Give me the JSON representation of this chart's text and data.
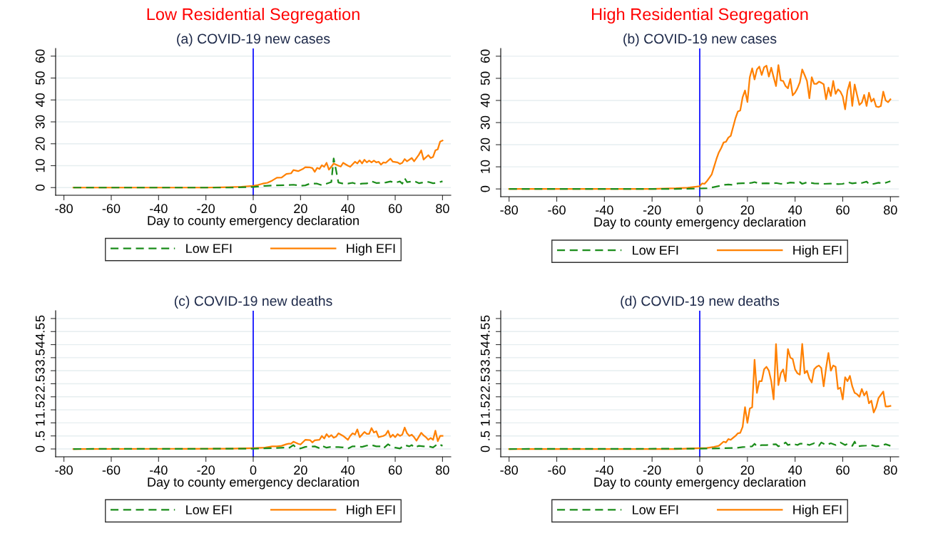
{
  "chart_data": [
    {
      "type": "line",
      "title": "Low Residential Segregation",
      "subtitle": "(a) COVID-19 new cases",
      "xlabel": "Day to county emergency declaration",
      "xlim": [
        -83.5,
        83.5
      ],
      "xticks": [
        -80,
        -60,
        -40,
        -20,
        0,
        20,
        40,
        60,
        80
      ],
      "ylim": [
        -3.5,
        63.5
      ],
      "yticks": [
        0,
        10,
        20,
        30,
        40,
        50,
        60
      ],
      "grid": "y",
      "legend": "bottom",
      "ref_lines": [
        {
          "axis": "x",
          "value": 0,
          "color": "#0000ff"
        }
      ],
      "series": [
        {
          "name": "Low EFI",
          "color": "#1a8c1a",
          "line_style": "dashed",
          "x": [
            -76,
            -10,
            0,
            5,
            10,
            15,
            17,
            20,
            22,
            24,
            27,
            29,
            31,
            33,
            34,
            35,
            36,
            38,
            40,
            42,
            44,
            46,
            48,
            50,
            52,
            54,
            56,
            58,
            60,
            62,
            63,
            64,
            65,
            67,
            68,
            70,
            72,
            74,
            76,
            78,
            80
          ],
          "values": [
            0,
            0,
            0.3,
            0.8,
            1.0,
            1.2,
            1.3,
            0.8,
            1.0,
            1.8,
            1.8,
            1.1,
            1.8,
            2.5,
            13.3,
            8,
            2.3,
            1.8,
            1.8,
            2.2,
            1.5,
            1.8,
            1.9,
            2.9,
            2.1,
            2.2,
            2.3,
            2.8,
            2.2,
            2.8,
            1.8,
            4.3,
            2.5,
            2.8,
            3,
            2,
            2.4,
            2.6,
            2,
            2.2,
            2.9
          ]
        },
        {
          "name": "High EFI",
          "color": "#ff8000",
          "line_style": "solid",
          "x": [
            -76,
            -20,
            -10,
            -5,
            0,
            2,
            4,
            6,
            8,
            10,
            12,
            14,
            16,
            17,
            19,
            21,
            22,
            24,
            25,
            26,
            27,
            28,
            29,
            30,
            31,
            32,
            33,
            34,
            36,
            37,
            38,
            40,
            41,
            43,
            44,
            45,
            46,
            47,
            48,
            49,
            50,
            51,
            52,
            53,
            54,
            55,
            56,
            58,
            59,
            61,
            62,
            63,
            64,
            65,
            67,
            68,
            70,
            71,
            72,
            74,
            75,
            76,
            77,
            78,
            79,
            80
          ],
          "values": [
            0,
            0,
            0.2,
            0.4,
            0.8,
            1.2,
            1.8,
            2.2,
            3.2,
            4.5,
            4.6,
            6.2,
            6.5,
            8,
            7.5,
            8.5,
            9.3,
            9.2,
            8.9,
            7.2,
            9,
            8.5,
            10.2,
            9.5,
            11.3,
            8.2,
            9.5,
            11,
            10,
            9.6,
            11.3,
            10,
            9.5,
            11.8,
            11,
            12.5,
            11,
            12.7,
            11.5,
            12.3,
            11.5,
            12.3,
            11.5,
            11.8,
            10.5,
            11.5,
            11.3,
            13.2,
            11.8,
            11.5,
            10.8,
            11.3,
            13,
            12,
            13.5,
            12,
            15,
            17,
            12.8,
            14.8,
            13.5,
            14,
            17,
            17.5,
            21,
            21.5
          ]
        }
      ]
    },
    {
      "type": "line",
      "title": "High Residential Segregation",
      "subtitle": "(b) COVID-19 new cases",
      "xlabel": "Day to county emergency declaration",
      "xlim": [
        -83.5,
        83.5
      ],
      "xticks": [
        -80,
        -60,
        -40,
        -20,
        0,
        20,
        40,
        60,
        80
      ],
      "ylim": [
        -3.5,
        63.5
      ],
      "yticks": [
        0,
        10,
        20,
        30,
        40,
        50,
        60
      ],
      "grid": "y",
      "legend": "bottom",
      "ref_lines": [
        {
          "axis": "x",
          "value": 0,
          "color": "#0000ff"
        }
      ],
      "series": [
        {
          "name": "Low EFI",
          "color": "#1a8c1a",
          "line_style": "dashed",
          "x": [
            -80,
            -10,
            0,
            3,
            5,
            8,
            10,
            12,
            14,
            16,
            18,
            20,
            22,
            23,
            25,
            28,
            30,
            32,
            34,
            36,
            38,
            40,
            42,
            43,
            45,
            48,
            52,
            55,
            58,
            60,
            62,
            64,
            66,
            68,
            70,
            71,
            73,
            75,
            77,
            78,
            80
          ],
          "values": [
            0,
            0,
            0.2,
            0.3,
            0.6,
            1.3,
            1.8,
            2,
            1.8,
            2.5,
            2.6,
            2.5,
            2.8,
            3.1,
            2.4,
            2.6,
            2.4,
            2.7,
            2.3,
            2.4,
            2.9,
            2.7,
            3.1,
            2.3,
            3,
            2.5,
            2.3,
            2.4,
            2.2,
            2.3,
            3.1,
            2.5,
            2.8,
            2.7,
            3.3,
            2.2,
            2.3,
            2.8,
            2.5,
            2.8,
            3.5
          ]
        },
        {
          "name": "High EFI",
          "color": "#ff8000",
          "line_style": "solid",
          "x": [
            -80,
            -20,
            -10,
            -5,
            0,
            1,
            2,
            3,
            4,
            5,
            6,
            7,
            8,
            9,
            10,
            11,
            12,
            13,
            14,
            15,
            16,
            17,
            18,
            19,
            20,
            21,
            22,
            23,
            24,
            25,
            26,
            27,
            28,
            29,
            30,
            31,
            32,
            33,
            34,
            35,
            36,
            37,
            38,
            39,
            40,
            41,
            42,
            43,
            44,
            45,
            46,
            47,
            48,
            49,
            50,
            51,
            52,
            53,
            54,
            55,
            56,
            57,
            58,
            59,
            60,
            61,
            62,
            63,
            64,
            65,
            66,
            67,
            68,
            69,
            70,
            71,
            72,
            73,
            74,
            75,
            76,
            77,
            78,
            79,
            80
          ],
          "values": [
            0,
            0,
            0.3,
            0.6,
            1.2,
            2.5,
            2.3,
            3.5,
            5,
            6.5,
            10,
            13.5,
            16.5,
            18.5,
            21,
            21.3,
            23.2,
            24,
            28,
            32,
            35,
            35.5,
            41.5,
            44.5,
            39.3,
            50.5,
            54.5,
            49.5,
            54,
            55.3,
            51.5,
            55,
            55.7,
            50.8,
            54.8,
            50.5,
            46.5,
            56,
            49,
            48.8,
            46.5,
            45.5,
            49.7,
            42.3,
            43.5,
            45.5,
            48.2,
            54,
            51.5,
            48.8,
            41,
            50.5,
            47.5,
            47.5,
            48.5,
            48,
            47.3,
            40.5,
            45.8,
            42,
            48.8,
            43,
            45,
            44,
            41.8,
            36,
            44.5,
            48.3,
            37.5,
            47.2,
            42.5,
            38,
            39,
            42.5,
            37.5,
            43.5,
            39.5,
            40.8,
            37.3,
            37,
            37.5,
            44,
            40,
            39.2,
            40.5
          ]
        }
      ]
    },
    {
      "type": "line",
      "title": "(c) COVID-19 new deaths",
      "xlabel": "Day to county emergency declaration",
      "xlim": [
        -83.5,
        83.5
      ],
      "xticks": [
        -80,
        -60,
        -40,
        -20,
        0,
        20,
        40,
        60,
        80
      ],
      "ylim": [
        -0.3,
        5.3
      ],
      "yticks": [
        0,
        {
          "value": 0.5,
          "label": ".5"
        },
        1,
        1.5,
        2,
        2.5,
        3,
        3.5,
        4,
        4.5,
        5
      ],
      "grid": "y",
      "legend": "bottom",
      "ref_lines": [
        {
          "axis": "x",
          "value": 0,
          "color": "#0000ff"
        }
      ],
      "series": [
        {
          "name": "Low EFI",
          "color": "#1a8c1a",
          "line_style": "dashed",
          "x": [
            -76,
            0,
            10,
            13,
            15,
            17,
            18,
            20,
            22,
            26,
            28,
            29,
            31,
            33,
            36,
            38,
            40,
            42,
            44,
            46,
            48,
            50,
            52,
            54,
            55,
            57,
            58,
            60,
            62,
            64,
            66,
            67,
            68,
            70,
            72,
            74,
            76,
            78,
            80
          ],
          "values": [
            0,
            0.01,
            0.04,
            0.05,
            0.03,
            0.15,
            0.05,
            0.02,
            0.08,
            0.1,
            0.03,
            0.12,
            0.05,
            0.08,
            0.07,
            0.06,
            0.01,
            0.1,
            0.1,
            0.08,
            0.13,
            0.15,
            0.1,
            0.1,
            0.02,
            0.18,
            0.12,
            0.05,
            0.02,
            0.15,
            0.1,
            0.15,
            0.05,
            0.12,
            0.1,
            0.1,
            0.06,
            0.2,
            0.12
          ]
        },
        {
          "name": "High EFI",
          "color": "#ff8000",
          "line_style": "solid",
          "x": [
            -76,
            -10,
            0,
            5,
            8,
            10,
            12,
            14,
            15,
            16,
            17,
            19,
            20,
            22,
            24,
            25,
            26,
            28,
            29,
            30,
            31,
            32,
            33,
            34,
            35,
            36,
            38,
            40,
            41,
            42,
            43,
            44,
            45,
            47,
            48,
            49,
            50,
            51,
            52,
            53,
            55,
            56,
            57,
            58,
            59,
            60,
            61,
            62,
            63,
            64,
            65,
            66,
            67,
            68,
            69,
            71,
            72,
            73,
            74,
            75,
            76,
            77,
            78,
            79,
            80
          ],
          "values": [
            0,
            0.01,
            0.03,
            0.05,
            0.1,
            0.1,
            0.12,
            0.18,
            0.2,
            0.2,
            0.28,
            0.2,
            0.17,
            0.35,
            0.34,
            0.25,
            0.33,
            0.35,
            0.5,
            0.4,
            0.57,
            0.46,
            0.53,
            0.43,
            0.47,
            0.6,
            0.5,
            0.35,
            0.5,
            0.6,
            0.55,
            0.75,
            0.45,
            0.65,
            0.58,
            0.58,
            0.8,
            0.63,
            0.68,
            0.45,
            0.5,
            0.55,
            0.7,
            0.45,
            0.55,
            0.45,
            0.57,
            0.5,
            0.55,
            0.82,
            0.6,
            0.5,
            0.55,
            0.45,
            0.32,
            0.62,
            0.52,
            0.45,
            0.35,
            0.42,
            0.35,
            0.7,
            0.3,
            0.5,
            0.5
          ]
        }
      ]
    },
    {
      "type": "line",
      "title": "(d) COVID-19 new deaths",
      "xlabel": "Day to county emergency declaration",
      "xlim": [
        -83.5,
        83.5
      ],
      "xticks": [
        -80,
        -60,
        -40,
        -20,
        0,
        20,
        40,
        60,
        80
      ],
      "ylim": [
        -0.3,
        5.3
      ],
      "yticks": [
        0,
        {
          "value": 0.5,
          "label": ".5"
        },
        1,
        1.5,
        2,
        2.5,
        3,
        3.5,
        4,
        4.5,
        5
      ],
      "grid": "y",
      "legend": "bottom",
      "ref_lines": [
        {
          "axis": "x",
          "value": 0,
          "color": "#0000ff"
        }
      ],
      "series": [
        {
          "name": "Low EFI",
          "color": "#1a8c1a",
          "line_style": "dashed",
          "x": [
            -80,
            0,
            10,
            15,
            18,
            20,
            22,
            23,
            24,
            26,
            28,
            30,
            32,
            33,
            35,
            36,
            37,
            39,
            41,
            42,
            44,
            46,
            48,
            50,
            51,
            53,
            55,
            57,
            59,
            61,
            62,
            64,
            65,
            66,
            68,
            70,
            72,
            74,
            76,
            78,
            80
          ],
          "values": [
            0,
            0.01,
            0.03,
            0.04,
            0.07,
            0.08,
            0.1,
            0.2,
            0.1,
            0.15,
            0.15,
            0.17,
            0.18,
            0.1,
            0.18,
            0.25,
            0.15,
            0.2,
            0.15,
            0.2,
            0.2,
            0.15,
            0.22,
            0.12,
            0.25,
            0.15,
            0.22,
            0.15,
            0.25,
            0.15,
            0.2,
            0.12,
            0.28,
            0.1,
            0.12,
            0.13,
            0.15,
            0.1,
            0.12,
            0.18,
            0.12
          ]
        },
        {
          "name": "High EFI",
          "color": "#ff8000",
          "line_style": "solid",
          "x": [
            -80,
            -10,
            0,
            3,
            6,
            8,
            10,
            11,
            12,
            13,
            15,
            16,
            17,
            18,
            19,
            20,
            21,
            22,
            23,
            24,
            25,
            26,
            27,
            28,
            29,
            30,
            31,
            32,
            33,
            34,
            35,
            36,
            37,
            38,
            39,
            40,
            41,
            42,
            43,
            44,
            45,
            46,
            47,
            48,
            49,
            50,
            51,
            52,
            53,
            54,
            55,
            56,
            57,
            58,
            59,
            60,
            61,
            62,
            63,
            64,
            65,
            66,
            67,
            68,
            69,
            70,
            71,
            72,
            73,
            74,
            75,
            77,
            78,
            79,
            80
          ],
          "values": [
            0,
            0,
            0.03,
            0.04,
            0.08,
            0.12,
            0.28,
            0.25,
            0.38,
            0.35,
            0.5,
            0.6,
            0.62,
            0.85,
            1.6,
            1.0,
            1.55,
            1.6,
            3.42,
            2.15,
            2.6,
            2.6,
            3.05,
            3.15,
            3.0,
            2.6,
            1.9,
            4.02,
            2.45,
            2.9,
            3.05,
            2.6,
            3.83,
            3.5,
            3.45,
            3.05,
            2.9,
            2.85,
            4.03,
            2.9,
            3.0,
            2.7,
            2.55,
            3.05,
            3.15,
            3.2,
            3.1,
            2.4,
            3.1,
            3.68,
            3.0,
            3.2,
            3.15,
            2.3,
            2.35,
            1.9,
            2.75,
            2.6,
            2.8,
            2.4,
            2.15,
            2.1,
            2.0,
            2.3,
            2.05,
            2.2,
            1.75,
            1.85,
            1.4,
            1.6,
            1.95,
            2.2,
            1.63,
            1.63,
            1.65
          ]
        }
      ]
    }
  ]
}
